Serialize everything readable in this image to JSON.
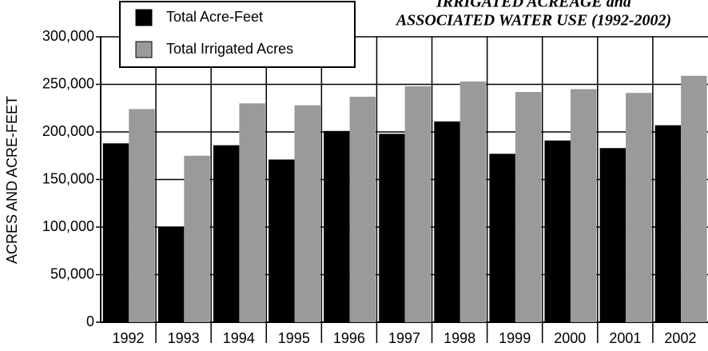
{
  "chart_data": {
    "type": "bar",
    "title": [
      "IRRIGATED ACREAGE and",
      "ASSOCIATED WATER USE (1992-2002)"
    ],
    "ylabel": "ACRES AND ACRE-FEET",
    "categories": [
      "1992",
      "1993",
      "1994",
      "1995",
      "1996",
      "1997",
      "1998",
      "1999",
      "2000",
      "2001",
      "2002"
    ],
    "series": [
      {
        "name": "Total Acre-Feet",
        "color": "#000000",
        "values": [
          188000,
          100000,
          186000,
          171000,
          201000,
          198000,
          211000,
          177000,
          191000,
          183000,
          207000
        ]
      },
      {
        "name": "Total Irrigated Acres",
        "color": "#9a9a9a",
        "values": [
          224000,
          175000,
          230000,
          228000,
          237000,
          248000,
          253000,
          242000,
          245000,
          241000,
          259000
        ]
      }
    ],
    "ylim": [
      0,
      300000
    ],
    "yticks": [
      0,
      {
        "value": 50000,
        "label": "50,000"
      },
      {
        "value": 100000,
        "label": "100,000"
      },
      {
        "value": 150000,
        "label": "150,000"
      },
      {
        "value": 200000,
        "label": "200,000"
      },
      {
        "value": 250000,
        "label": "250,000"
      },
      {
        "value": 300000,
        "label": "300,000"
      }
    ],
    "grid": true,
    "legend": "upper left"
  }
}
